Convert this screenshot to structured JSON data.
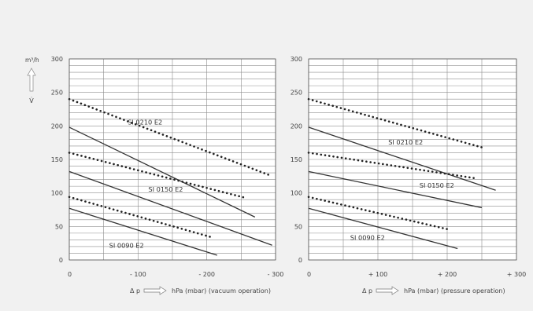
{
  "chart_data": [
    {
      "type": "line",
      "y_unit": "m³/h",
      "y_symbol": "V̇",
      "ylim": [
        0,
        300
      ],
      "y_ticks": [
        "0",
        "50",
        "100",
        "150",
        "200",
        "250",
        "300"
      ],
      "xlim": [
        0,
        300
      ],
      "x_ticks": [
        "0",
        "- 100",
        "- 200",
        "- 300"
      ],
      "x_tick_values": [
        0,
        100,
        200,
        300
      ],
      "x_delta_label": "Δ p",
      "xlabel": "hPa (mbar) (vacuum operation)",
      "grid": true,
      "series": [
        {
          "name": "SI 0210 E2",
          "style": "solid",
          "x": [
            0,
            270
          ],
          "y": [
            198,
            64
          ]
        },
        {
          "style": "dotted",
          "x": [
            0,
            290
          ],
          "y": [
            240,
            127
          ]
        },
        {
          "name": "SI 0150 E2",
          "style": "solid",
          "x": [
            0,
            295
          ],
          "y": [
            132,
            22
          ]
        },
        {
          "style": "dotted",
          "x": [
            0,
            255
          ],
          "y": [
            160,
            93
          ]
        },
        {
          "name": "SI 0090 E2",
          "style": "solid",
          "x": [
            0,
            215
          ],
          "y": [
            77,
            7
          ]
        },
        {
          "style": "dotted",
          "x": [
            0,
            210
          ],
          "y": [
            94,
            33
          ]
        }
      ],
      "annotations": [
        {
          "text": "SI 0210 E2",
          "x": 85,
          "y": 202
        },
        {
          "text": "SI 0150 E2",
          "x": 115,
          "y": 102
        },
        {
          "text": "SI 0090 E2",
          "x": 58,
          "y": 18
        }
      ]
    },
    {
      "type": "line",
      "ylim": [
        0,
        300
      ],
      "y_ticks": [
        "0",
        "50",
        "100",
        "150",
        "200",
        "250",
        "300"
      ],
      "xlim": [
        0,
        300
      ],
      "x_ticks": [
        "0",
        "+ 100",
        "+ 200",
        "+ 300"
      ],
      "x_tick_values": [
        0,
        100,
        200,
        300
      ],
      "x_delta_label": "Δ p",
      "xlabel": "hPa (mbar) (pressure operation)",
      "grid": true,
      "series": [
        {
          "name": "SI 0210 E2",
          "style": "solid",
          "x": [
            0,
            270
          ],
          "y": [
            198,
            104
          ]
        },
        {
          "style": "dotted",
          "x": [
            0,
            250
          ],
          "y": [
            240,
            168
          ]
        },
        {
          "name": "SI 0150 E2",
          "style": "solid",
          "x": [
            0,
            250
          ],
          "y": [
            132,
            78
          ]
        },
        {
          "style": "dotted",
          "x": [
            0,
            240
          ],
          "y": [
            160,
            122
          ]
        },
        {
          "name": "SI 0090 E2",
          "style": "solid",
          "x": [
            0,
            215
          ],
          "y": [
            77,
            17
          ]
        },
        {
          "style": "dotted",
          "x": [
            0,
            200
          ],
          "y": [
            94,
            46
          ]
        }
      ],
      "annotations": [
        {
          "text": "SI 0210 E2",
          "x": 115,
          "y": 172
        },
        {
          "text": "SI 0150 E2",
          "x": 160,
          "y": 108
        },
        {
          "text": "SI 0090 E2",
          "x": 60,
          "y": 30
        }
      ]
    }
  ]
}
